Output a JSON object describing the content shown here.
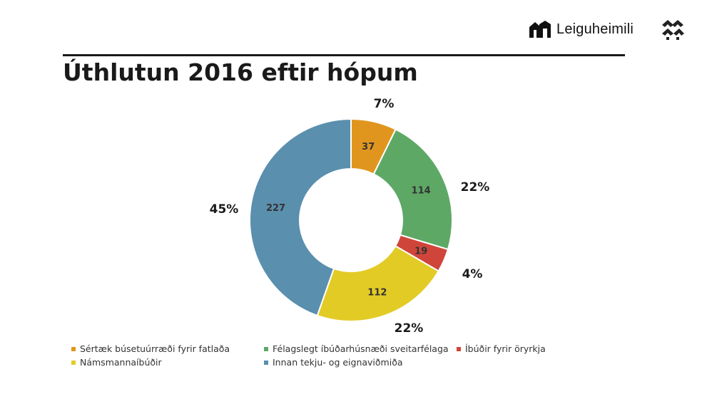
{
  "header": {
    "brand_name": "Leiguheimili",
    "title": "Úthlutun 2016 eftir hópum"
  },
  "chart_data": {
    "type": "pie",
    "donut": true,
    "title": "Úthlutun 2016 eftir hópum",
    "legend_position": "bottom",
    "slices": [
      {
        "label": "Sértæk búsetuúrræði fyrir fatlaða",
        "value": 37,
        "percent_label": "7%",
        "color": "#e0961e"
      },
      {
        "label": "Félagslegt íbúðarhúsnæði sveitarfélaga",
        "value": 114,
        "percent_label": "22%",
        "color": "#5ea866"
      },
      {
        "label": "Íbúðir fyrir öryrkja",
        "value": 19,
        "percent_label": "4%",
        "color": "#d0453a"
      },
      {
        "label": "Námsmannaíbúðir",
        "value": 112,
        "percent_label": "22%",
        "color": "#e3cb26"
      },
      {
        "label": "Innan tekju- og eignaviðmiða",
        "value": 227,
        "percent_label": "45%",
        "color": "#5a8fae"
      }
    ]
  }
}
